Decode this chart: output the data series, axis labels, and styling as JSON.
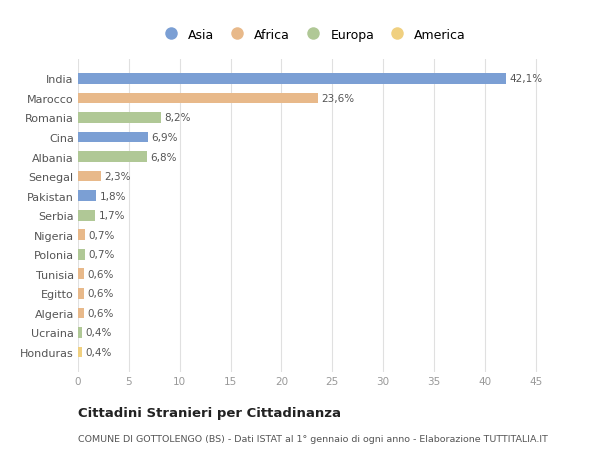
{
  "countries": [
    "India",
    "Marocco",
    "Romania",
    "Cina",
    "Albania",
    "Senegal",
    "Pakistan",
    "Serbia",
    "Nigeria",
    "Polonia",
    "Tunisia",
    "Egitto",
    "Algeria",
    "Ucraina",
    "Honduras"
  ],
  "values": [
    42.1,
    23.6,
    8.2,
    6.9,
    6.8,
    2.3,
    1.8,
    1.7,
    0.7,
    0.7,
    0.6,
    0.6,
    0.6,
    0.4,
    0.4
  ],
  "labels": [
    "42,1%",
    "23,6%",
    "8,2%",
    "6,9%",
    "6,8%",
    "2,3%",
    "1,8%",
    "1,7%",
    "0,7%",
    "0,7%",
    "0,6%",
    "0,6%",
    "0,6%",
    "0,4%",
    "0,4%"
  ],
  "continents": [
    "Asia",
    "Africa",
    "Europa",
    "Asia",
    "Europa",
    "Africa",
    "Asia",
    "Europa",
    "Africa",
    "Europa",
    "Africa",
    "Africa",
    "Africa",
    "Europa",
    "America"
  ],
  "colors": {
    "Asia": "#7b9fd4",
    "Africa": "#e8b98a",
    "Europa": "#b0c896",
    "America": "#f0d080"
  },
  "legend_order": [
    "Asia",
    "Africa",
    "Europa",
    "America"
  ],
  "title": "Cittadini Stranieri per Cittadinanza",
  "subtitle": "COMUNE DI GOTTOLENGO (BS) - Dati ISTAT al 1° gennaio di ogni anno - Elaborazione TUTTITALIA.IT",
  "xlim": [
    0,
    46
  ],
  "xticks": [
    0,
    5,
    10,
    15,
    20,
    25,
    30,
    35,
    40,
    45
  ],
  "bg_color": "#ffffff",
  "grid_color": "#e0e0e0"
}
